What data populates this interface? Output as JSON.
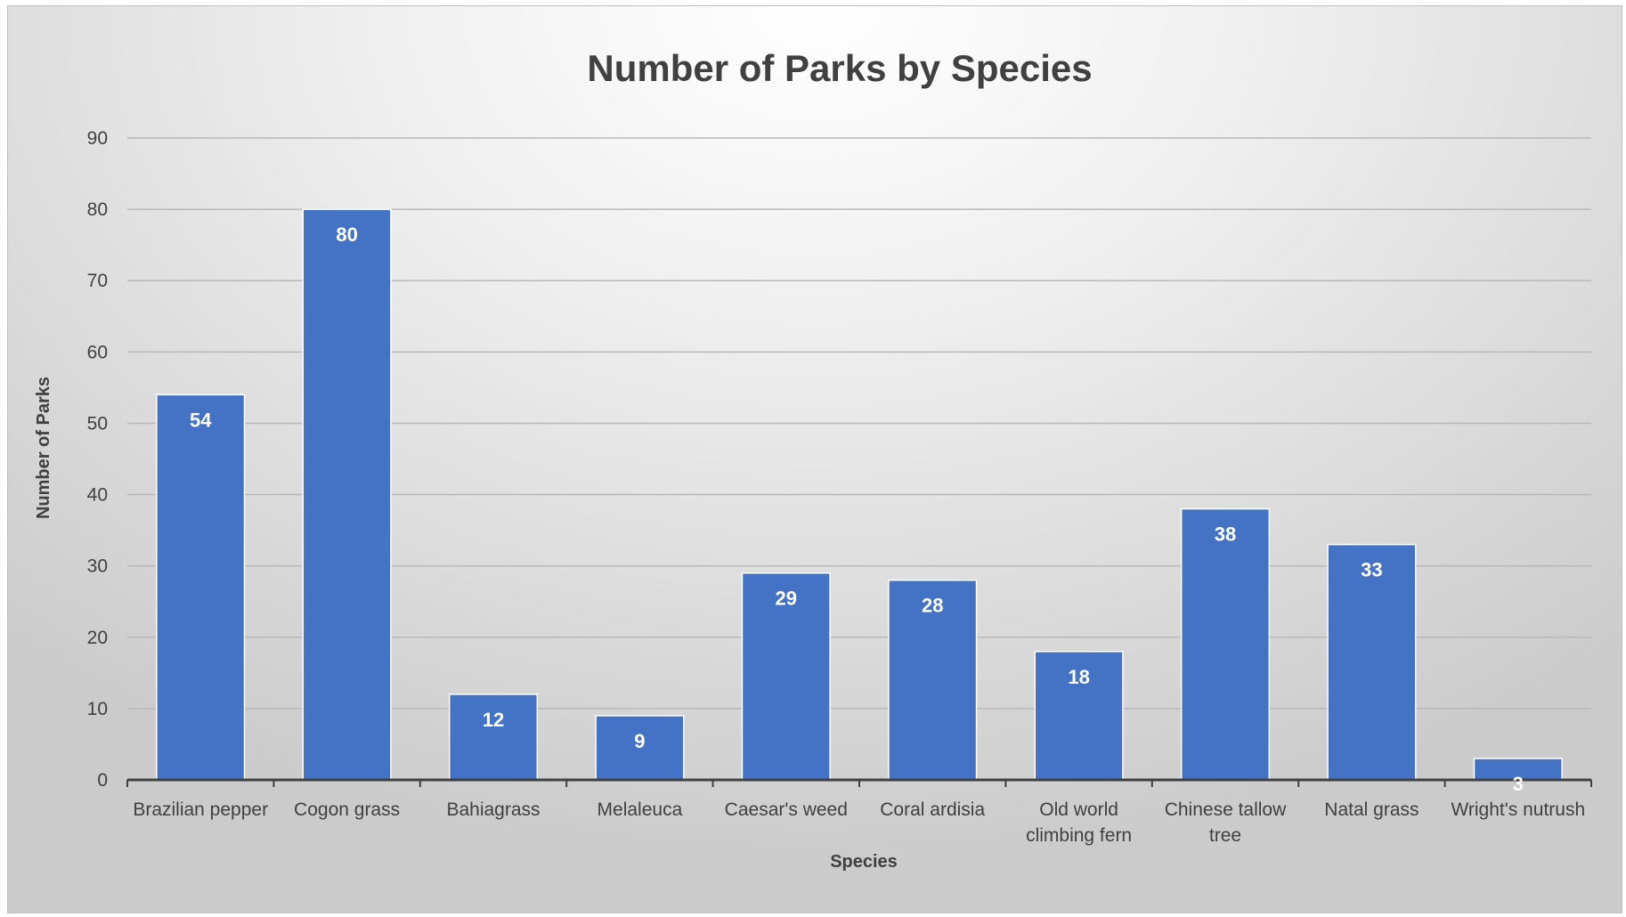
{
  "chart_data": {
    "type": "bar",
    "title": "Number of Parks by Species",
    "xlabel": "Species",
    "ylabel": "Number of Parks",
    "categories": [
      [
        "Brazilian pepper"
      ],
      [
        "Cogon grass"
      ],
      [
        "Bahiagrass"
      ],
      [
        "Melaleuca"
      ],
      [
        "Caesar's weed"
      ],
      [
        "Coral ardisia"
      ],
      [
        "Old world",
        "climbing fern"
      ],
      [
        "Chinese tallow",
        "tree"
      ],
      [
        "Natal grass"
      ],
      [
        "Wright's nutrush"
      ]
    ],
    "values": [
      54,
      80,
      12,
      9,
      29,
      28,
      18,
      38,
      33,
      3
    ],
    "ylim": [
      0,
      90
    ],
    "yticks": [
      0,
      10,
      20,
      30,
      40,
      50,
      60,
      70,
      80,
      90
    ],
    "grid": true,
    "legend": "none",
    "colors": {
      "bar": "#4472c4",
      "bar_edge": "#ffffff",
      "grid": "#b8b8b8",
      "axis": "#404040",
      "text": "#404040",
      "label": "#ffffff"
    }
  }
}
